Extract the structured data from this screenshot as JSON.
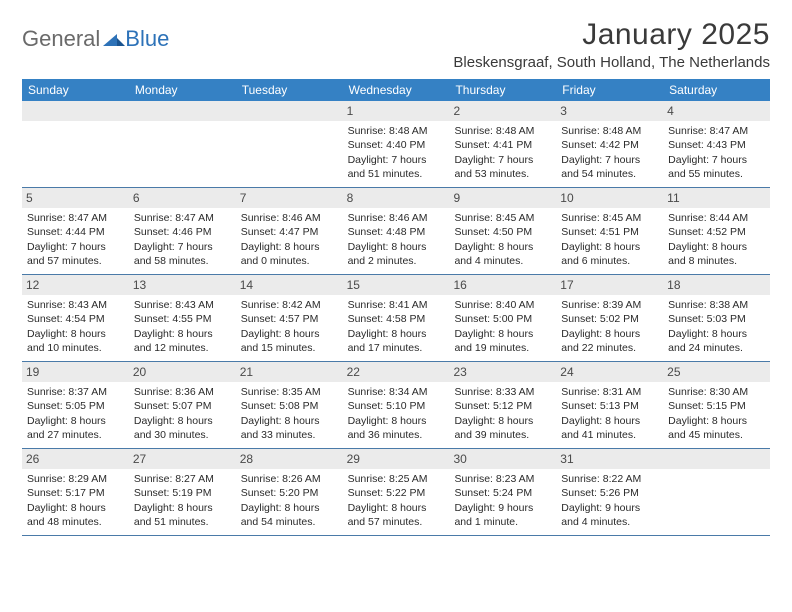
{
  "logo": {
    "part1": "General",
    "part2": "Blue"
  },
  "title": "January 2025",
  "location": "Bleskensgraaf, South Holland, The Netherlands",
  "colors": {
    "header_bg": "#3581c4",
    "header_text": "#ffffff",
    "daynum_bg": "#ebebeb",
    "border": "#4a7aa8",
    "text": "#2a2a2a"
  },
  "weekdays": [
    "Sunday",
    "Monday",
    "Tuesday",
    "Wednesday",
    "Thursday",
    "Friday",
    "Saturday"
  ],
  "weeks": [
    [
      {
        "n": "",
        "l1": "",
        "l2": "",
        "l3": "",
        "l4": ""
      },
      {
        "n": "",
        "l1": "",
        "l2": "",
        "l3": "",
        "l4": ""
      },
      {
        "n": "",
        "l1": "",
        "l2": "",
        "l3": "",
        "l4": ""
      },
      {
        "n": "1",
        "l1": "Sunrise: 8:48 AM",
        "l2": "Sunset: 4:40 PM",
        "l3": "Daylight: 7 hours",
        "l4": "and 51 minutes."
      },
      {
        "n": "2",
        "l1": "Sunrise: 8:48 AM",
        "l2": "Sunset: 4:41 PM",
        "l3": "Daylight: 7 hours",
        "l4": "and 53 minutes."
      },
      {
        "n": "3",
        "l1": "Sunrise: 8:48 AM",
        "l2": "Sunset: 4:42 PM",
        "l3": "Daylight: 7 hours",
        "l4": "and 54 minutes."
      },
      {
        "n": "4",
        "l1": "Sunrise: 8:47 AM",
        "l2": "Sunset: 4:43 PM",
        "l3": "Daylight: 7 hours",
        "l4": "and 55 minutes."
      }
    ],
    [
      {
        "n": "5",
        "l1": "Sunrise: 8:47 AM",
        "l2": "Sunset: 4:44 PM",
        "l3": "Daylight: 7 hours",
        "l4": "and 57 minutes."
      },
      {
        "n": "6",
        "l1": "Sunrise: 8:47 AM",
        "l2": "Sunset: 4:46 PM",
        "l3": "Daylight: 7 hours",
        "l4": "and 58 minutes."
      },
      {
        "n": "7",
        "l1": "Sunrise: 8:46 AM",
        "l2": "Sunset: 4:47 PM",
        "l3": "Daylight: 8 hours",
        "l4": "and 0 minutes."
      },
      {
        "n": "8",
        "l1": "Sunrise: 8:46 AM",
        "l2": "Sunset: 4:48 PM",
        "l3": "Daylight: 8 hours",
        "l4": "and 2 minutes."
      },
      {
        "n": "9",
        "l1": "Sunrise: 8:45 AM",
        "l2": "Sunset: 4:50 PM",
        "l3": "Daylight: 8 hours",
        "l4": "and 4 minutes."
      },
      {
        "n": "10",
        "l1": "Sunrise: 8:45 AM",
        "l2": "Sunset: 4:51 PM",
        "l3": "Daylight: 8 hours",
        "l4": "and 6 minutes."
      },
      {
        "n": "11",
        "l1": "Sunrise: 8:44 AM",
        "l2": "Sunset: 4:52 PM",
        "l3": "Daylight: 8 hours",
        "l4": "and 8 minutes."
      }
    ],
    [
      {
        "n": "12",
        "l1": "Sunrise: 8:43 AM",
        "l2": "Sunset: 4:54 PM",
        "l3": "Daylight: 8 hours",
        "l4": "and 10 minutes."
      },
      {
        "n": "13",
        "l1": "Sunrise: 8:43 AM",
        "l2": "Sunset: 4:55 PM",
        "l3": "Daylight: 8 hours",
        "l4": "and 12 minutes."
      },
      {
        "n": "14",
        "l1": "Sunrise: 8:42 AM",
        "l2": "Sunset: 4:57 PM",
        "l3": "Daylight: 8 hours",
        "l4": "and 15 minutes."
      },
      {
        "n": "15",
        "l1": "Sunrise: 8:41 AM",
        "l2": "Sunset: 4:58 PM",
        "l3": "Daylight: 8 hours",
        "l4": "and 17 minutes."
      },
      {
        "n": "16",
        "l1": "Sunrise: 8:40 AM",
        "l2": "Sunset: 5:00 PM",
        "l3": "Daylight: 8 hours",
        "l4": "and 19 minutes."
      },
      {
        "n": "17",
        "l1": "Sunrise: 8:39 AM",
        "l2": "Sunset: 5:02 PM",
        "l3": "Daylight: 8 hours",
        "l4": "and 22 minutes."
      },
      {
        "n": "18",
        "l1": "Sunrise: 8:38 AM",
        "l2": "Sunset: 5:03 PM",
        "l3": "Daylight: 8 hours",
        "l4": "and 24 minutes."
      }
    ],
    [
      {
        "n": "19",
        "l1": "Sunrise: 8:37 AM",
        "l2": "Sunset: 5:05 PM",
        "l3": "Daylight: 8 hours",
        "l4": "and 27 minutes."
      },
      {
        "n": "20",
        "l1": "Sunrise: 8:36 AM",
        "l2": "Sunset: 5:07 PM",
        "l3": "Daylight: 8 hours",
        "l4": "and 30 minutes."
      },
      {
        "n": "21",
        "l1": "Sunrise: 8:35 AM",
        "l2": "Sunset: 5:08 PM",
        "l3": "Daylight: 8 hours",
        "l4": "and 33 minutes."
      },
      {
        "n": "22",
        "l1": "Sunrise: 8:34 AM",
        "l2": "Sunset: 5:10 PM",
        "l3": "Daylight: 8 hours",
        "l4": "and 36 minutes."
      },
      {
        "n": "23",
        "l1": "Sunrise: 8:33 AM",
        "l2": "Sunset: 5:12 PM",
        "l3": "Daylight: 8 hours",
        "l4": "and 39 minutes."
      },
      {
        "n": "24",
        "l1": "Sunrise: 8:31 AM",
        "l2": "Sunset: 5:13 PM",
        "l3": "Daylight: 8 hours",
        "l4": "and 41 minutes."
      },
      {
        "n": "25",
        "l1": "Sunrise: 8:30 AM",
        "l2": "Sunset: 5:15 PM",
        "l3": "Daylight: 8 hours",
        "l4": "and 45 minutes."
      }
    ],
    [
      {
        "n": "26",
        "l1": "Sunrise: 8:29 AM",
        "l2": "Sunset: 5:17 PM",
        "l3": "Daylight: 8 hours",
        "l4": "and 48 minutes."
      },
      {
        "n": "27",
        "l1": "Sunrise: 8:27 AM",
        "l2": "Sunset: 5:19 PM",
        "l3": "Daylight: 8 hours",
        "l4": "and 51 minutes."
      },
      {
        "n": "28",
        "l1": "Sunrise: 8:26 AM",
        "l2": "Sunset: 5:20 PM",
        "l3": "Daylight: 8 hours",
        "l4": "and 54 minutes."
      },
      {
        "n": "29",
        "l1": "Sunrise: 8:25 AM",
        "l2": "Sunset: 5:22 PM",
        "l3": "Daylight: 8 hours",
        "l4": "and 57 minutes."
      },
      {
        "n": "30",
        "l1": "Sunrise: 8:23 AM",
        "l2": "Sunset: 5:24 PM",
        "l3": "Daylight: 9 hours",
        "l4": "and 1 minute."
      },
      {
        "n": "31",
        "l1": "Sunrise: 8:22 AM",
        "l2": "Sunset: 5:26 PM",
        "l3": "Daylight: 9 hours",
        "l4": "and 4 minutes."
      },
      {
        "n": "",
        "l1": "",
        "l2": "",
        "l3": "",
        "l4": ""
      }
    ]
  ]
}
